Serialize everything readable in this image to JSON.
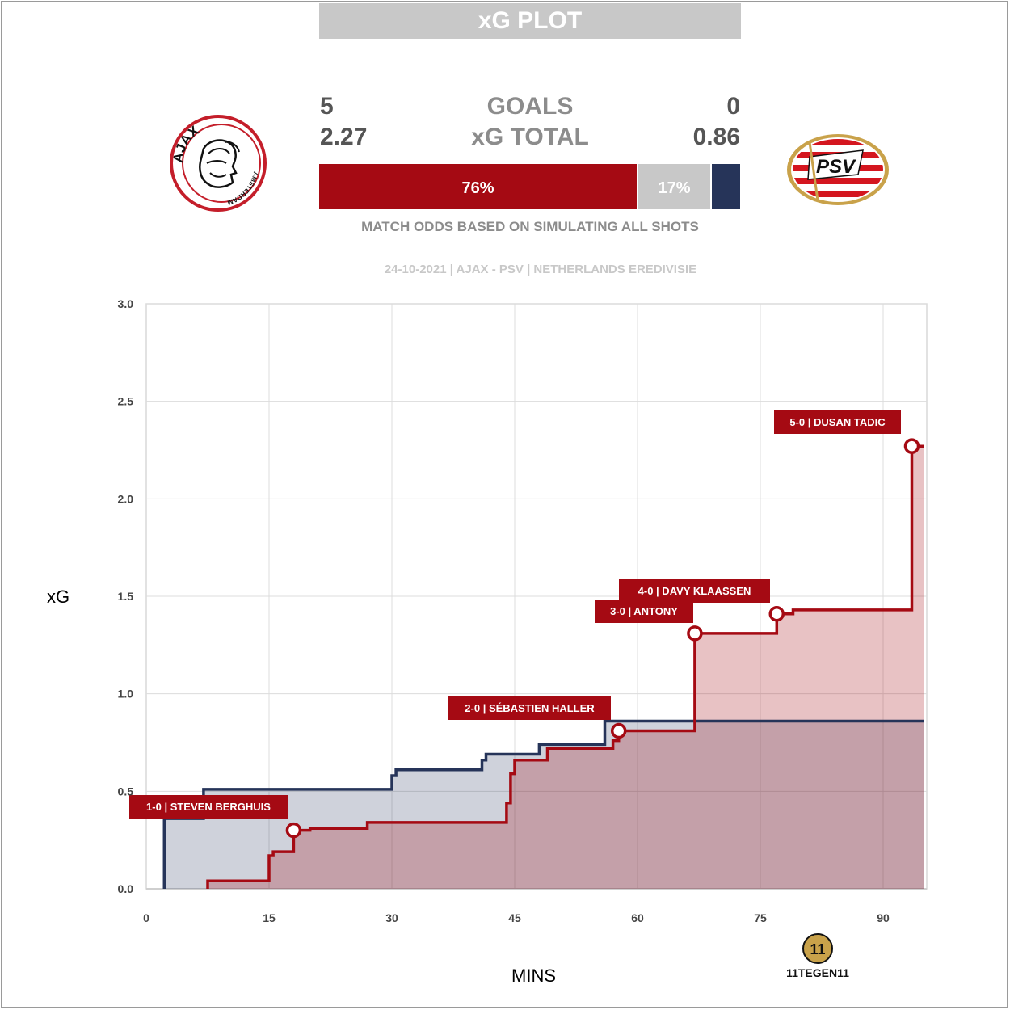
{
  "header": {
    "title": "xG PLOT"
  },
  "teams": {
    "home": {
      "name": "AJAX",
      "logo_icon": "ajax-crest-icon",
      "logo_text_top": "AJAX",
      "logo_text_bottom": "AMSTERDAM",
      "color": "#a50a13"
    },
    "away": {
      "name": "PSV",
      "logo_icon": "psv-crest-icon",
      "logo_text": "PSV",
      "color": "#263459"
    }
  },
  "summary": {
    "goals_label": "GOALS",
    "xg_label": "xG TOTAL",
    "home_goals": "5",
    "away_goals": "0",
    "home_xg": "2.27",
    "away_xg": "0.86"
  },
  "odds": {
    "home_win": "76%",
    "draw": "17%",
    "away_win": "",
    "home_fraction": 0.76,
    "draw_fraction": 0.17,
    "away_fraction": 0.07,
    "caption": "MATCH ODDS BASED ON SIMULATING ALL SHOTS"
  },
  "match_info": "24-10-2021 | AJAX - PSV | NETHERLANDS EREDIVISIE",
  "brand": {
    "logo_icon": "11tegen11-logo-icon",
    "text": "11TEGEN11"
  },
  "chart_data": {
    "type": "line",
    "title": "",
    "xlabel": "MINS",
    "ylabel": "xG",
    "xlim": [
      0,
      95
    ],
    "ylim": [
      0,
      3.0
    ],
    "x_ticks": [
      "0",
      "15",
      "30",
      "45",
      "60",
      "75",
      "90"
    ],
    "y_ticks": [
      "0.0",
      "0.5",
      "1.0",
      "1.5",
      "2.0",
      "2.5",
      "3.0"
    ],
    "grid": true,
    "series": [
      {
        "team": "PSV",
        "color": "#263459",
        "fill": "rgba(38,52,89,0.22)",
        "step": true,
        "points": [
          [
            2.2,
            0.0
          ],
          [
            2.2,
            0.36
          ],
          [
            7,
            0.36
          ],
          [
            7,
            0.51
          ],
          [
            30,
            0.51
          ],
          [
            30,
            0.58
          ],
          [
            30.5,
            0.58
          ],
          [
            30.5,
            0.61
          ],
          [
            41,
            0.61
          ],
          [
            41,
            0.66
          ],
          [
            41.5,
            0.66
          ],
          [
            41.5,
            0.69
          ],
          [
            48,
            0.69
          ],
          [
            48,
            0.74
          ],
          [
            56,
            0.74
          ],
          [
            56,
            0.86
          ],
          [
            95,
            0.86
          ]
        ]
      },
      {
        "team": "AJAX",
        "color": "#a50a13",
        "fill": "rgba(165,10,19,0.25)",
        "step": true,
        "points": [
          [
            7.5,
            0.0
          ],
          [
            7.5,
            0.04
          ],
          [
            15,
            0.04
          ],
          [
            15,
            0.17
          ],
          [
            15.5,
            0.17
          ],
          [
            15.5,
            0.19
          ],
          [
            18,
            0.19
          ],
          [
            18,
            0.3
          ],
          [
            20,
            0.3
          ],
          [
            20,
            0.31
          ],
          [
            27,
            0.31
          ],
          [
            27,
            0.34
          ],
          [
            44,
            0.34
          ],
          [
            44,
            0.44
          ],
          [
            44.5,
            0.44
          ],
          [
            44.5,
            0.59
          ],
          [
            45,
            0.59
          ],
          [
            45,
            0.66
          ],
          [
            49,
            0.66
          ],
          [
            49,
            0.72
          ],
          [
            57,
            0.72
          ],
          [
            57,
            0.76
          ],
          [
            57.7,
            0.76
          ],
          [
            57.7,
            0.81
          ],
          [
            67,
            0.81
          ],
          [
            67,
            1.31
          ],
          [
            77,
            1.31
          ],
          [
            77,
            1.41
          ],
          [
            79,
            1.41
          ],
          [
            79,
            1.43
          ],
          [
            93.5,
            1.43
          ],
          [
            93.5,
            2.27
          ],
          [
            95,
            2.27
          ]
        ]
      }
    ],
    "goals": [
      {
        "label": "1-0 | STEVEN BERGHUIS",
        "minute": 18,
        "xg": 0.3
      },
      {
        "label": "2-0 | SÉBASTIEN HALLER",
        "minute": 57.7,
        "xg": 0.81
      },
      {
        "label": "3-0 | ANTONY",
        "minute": 67,
        "xg": 1.31
      },
      {
        "label": "4-0 | DAVY KLAASSEN",
        "minute": 77,
        "xg": 1.41
      },
      {
        "label": "5-0 | DUSAN TADIC",
        "minute": 93.5,
        "xg": 2.27
      }
    ]
  }
}
